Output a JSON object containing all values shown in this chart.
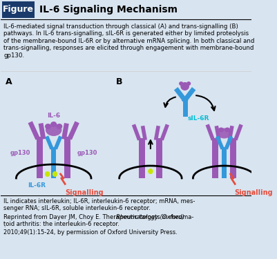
{
  "title": "IL-6 Signaling Mechanism",
  "header_label": "Figure",
  "header_bg": "#1a3a6b",
  "bg_color": "#d8e4f0",
  "description": "IL-6-mediated signal transduction through classical (A) and trans-signalling (B)\npathways. In IL-6 trans-signalling, sIL-6R is generated either by limited proteolysis\nof the membrane-bound IL-6R or by alternative mRNA splicing. In both classical and\ntrans-signalling, responses are elicited through engagement with membrane-bound\ngp130.",
  "footer1": "IL indicates interleukin; IL-6R, interleukin-6 receptor; mRNA, mes-\nsenger RNA; sIL-6R, soluble interleukin-6 receptor.",
  "footer2": "Reprinted from Dayer JM, Choy E. Therapeutic targets in rheuma-\ntoid arthritis: the interleukin-6 receptor. ",
  "footer2_italic": "Rheumatology (Oxford)",
  "footer2_end": ".\n2010;49(1):15-24, by permission of Oxford University Press.",
  "purple": "#9b59b6",
  "blue": "#3498db",
  "green": "#c8e600",
  "red": "#e74c3c",
  "cyan": "#00bcd4",
  "dark_blue": "#1a3a6b",
  "label_A": "A",
  "label_B": "B",
  "lbl_IL6": "IL-6",
  "lbl_gp130_left": "gp130",
  "lbl_gp130_right": "gp130",
  "lbl_IL6R": "IL-6R",
  "lbl_signalling_A": "Signalling",
  "lbl_sIL6R": "sIL-6R",
  "lbl_signalling_B": "Signalling"
}
